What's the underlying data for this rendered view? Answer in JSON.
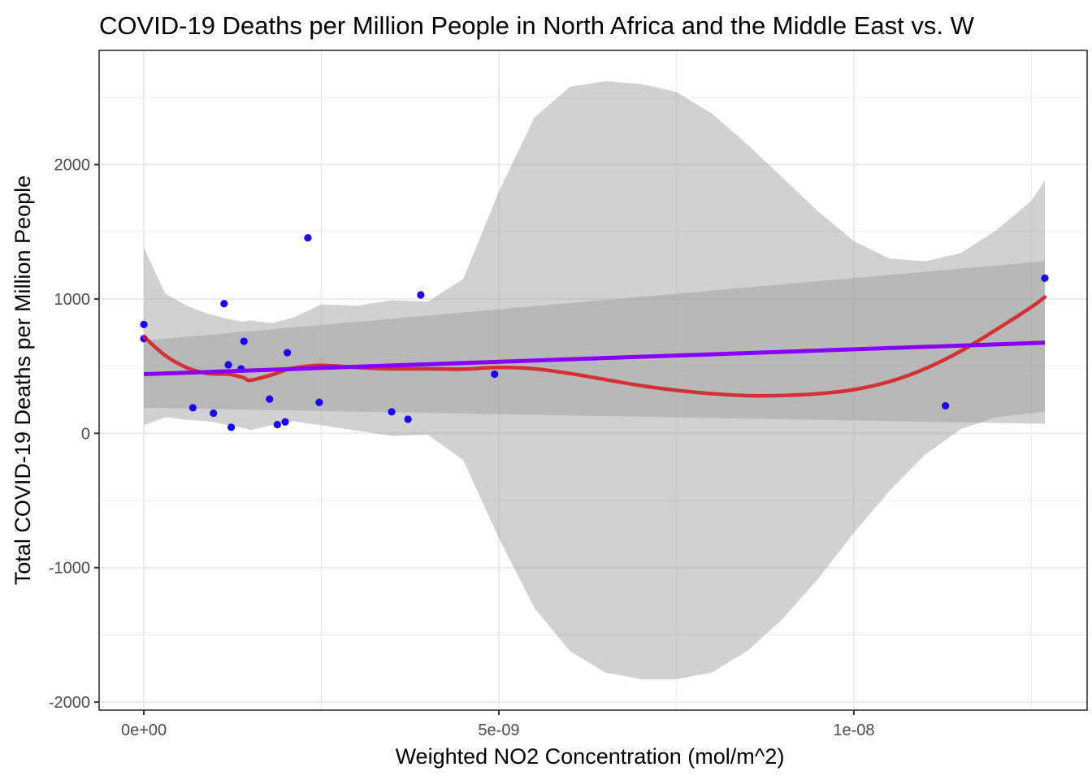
{
  "chart_data": {
    "type": "scatter",
    "title": "COVID-19 Deaths per Million People in North Africa and the Middle East vs. W",
    "xlabel": "Weighted NO2 Concentration (mol/m^2)",
    "ylabel": "Total COVID-19 Deaths per Million People",
    "xlim": [
      -6.3e-10,
      1.3285e-08
    ],
    "ylim": [
      -2060,
      2850
    ],
    "x_ticks": [
      0,
      5e-09,
      1e-08
    ],
    "x_tick_labels": [
      "0e+00",
      "5e-09",
      "1e-08"
    ],
    "y_ticks": [
      -2000,
      -1000,
      0,
      1000,
      2000
    ],
    "y_tick_labels": [
      "-2000",
      "-1000",
      "0",
      "1000",
      "2000"
    ],
    "grid": true,
    "colors": {
      "points": "#1a00ff",
      "linear_fit": "#8800ff",
      "smooth_fit": "#d7191c",
      "ribbon": "#999999"
    },
    "points": {
      "x": [
        0.0,
        0.0,
        6.9e-10,
        9.8e-10,
        1.13e-09,
        1.19e-09,
        1.23e-09,
        1.37e-09,
        1.41e-09,
        1.77e-09,
        1.88e-09,
        1.99e-09,
        2.02e-09,
        2.31e-09,
        2.47e-09,
        3.49e-09,
        3.72e-09,
        3.9e-09,
        4.94e-09,
        1.129e-08,
        1.269e-08
      ],
      "y": [
        810,
        705,
        190,
        150,
        965,
        510,
        45,
        480,
        685,
        255,
        65,
        85,
        600,
        1455,
        230,
        160,
        105,
        1030,
        440,
        205,
        1155
      ]
    },
    "linear_fit": {
      "x": [
        0.0,
        1.269e-08
      ],
      "y": [
        440,
        675
      ],
      "ci_upper": [
        690,
        1280
      ],
      "ci_lower": [
        190,
        70
      ]
    },
    "smooth_fit": {
      "x": [
        0.0,
        3e-10,
        6e-10,
        9e-10,
        1.2e-09,
        1.4e-09,
        1.5e-09,
        1.8e-09,
        2.1e-09,
        2.5e-09,
        3e-09,
        3.5e-09,
        4e-09,
        4.5e-09,
        5e-09,
        5.5e-09,
        6e-09,
        6.5e-09,
        7e-09,
        7.5e-09,
        8e-09,
        8.5e-09,
        9e-09,
        9.5e-09,
        1e-08,
        1.05e-08,
        1.1e-08,
        1.15e-08,
        1.2e-08,
        1.25e-08,
        1.269e-08
      ],
      "y": [
        720,
        580,
        490,
        445,
        440,
        415,
        395,
        435,
        485,
        505,
        490,
        480,
        480,
        478,
        490,
        480,
        445,
        400,
        355,
        320,
        295,
        280,
        282,
        295,
        325,
        385,
        480,
        610,
        770,
        940,
        1015
      ],
      "ci_upper": [
        1380,
        1040,
        950,
        890,
        850,
        830,
        840,
        820,
        860,
        960,
        950,
        990,
        980,
        1150,
        1800,
        2350,
        2580,
        2620,
        2600,
        2540,
        2380,
        2150,
        1900,
        1650,
        1430,
        1300,
        1280,
        1340,
        1510,
        1730,
        1880
      ],
      "ci_lower": [
        60,
        120,
        100,
        90,
        60,
        40,
        25,
        60,
        90,
        60,
        20,
        -20,
        -10,
        -200,
        -780,
        -1300,
        -1620,
        -1780,
        -1830,
        -1830,
        -1780,
        -1620,
        -1380,
        -1080,
        -740,
        -430,
        -160,
        30,
        120,
        150,
        160
      ]
    }
  }
}
